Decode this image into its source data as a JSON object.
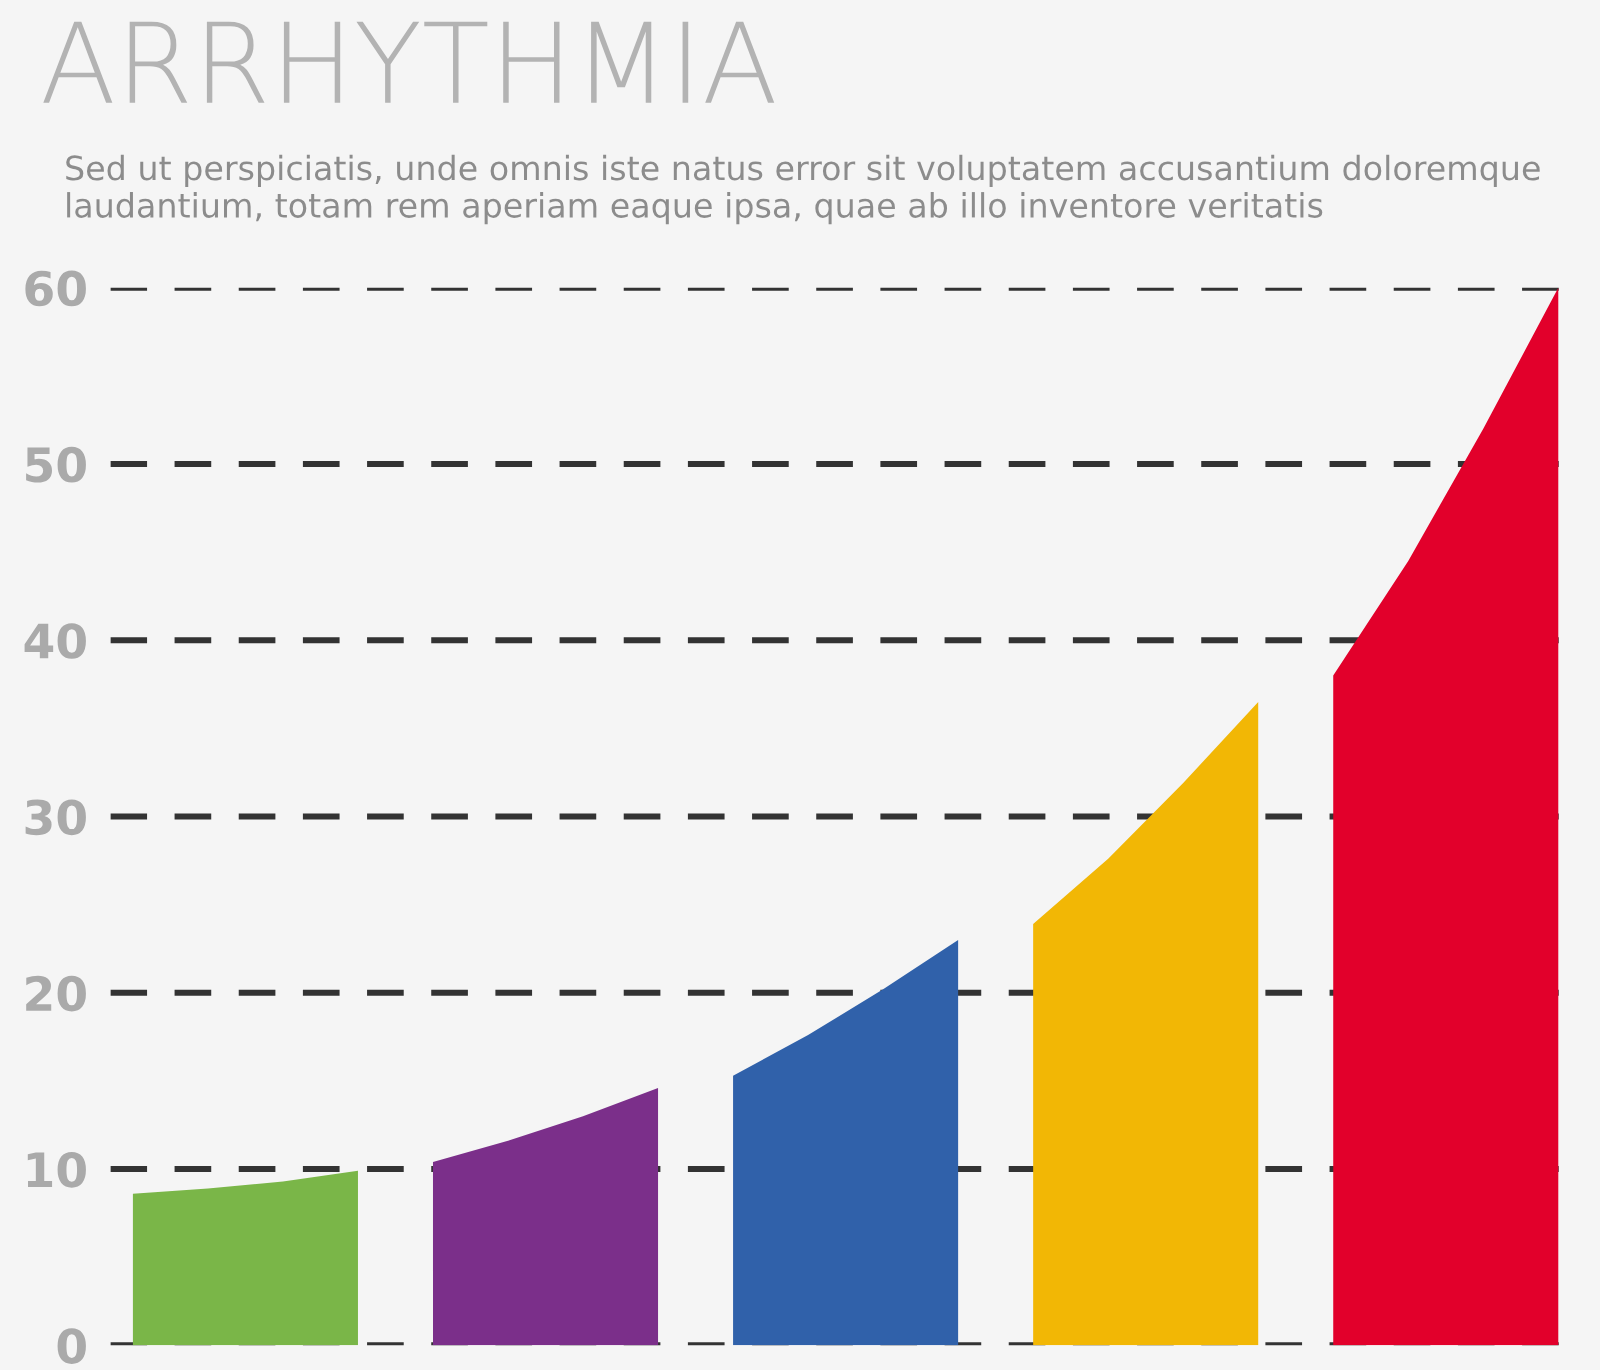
{
  "chart_data": {
    "type": "area",
    "title": "ARRHYTHMIA",
    "subtitle": "Sed ut perspiciatis, unde omnis iste natus error sit voluptatem accusantium doloremque laudantium, totam rem aperiam eaque ipsa, quae ab illo inventore veritatis",
    "categories": [
      null,
      null,
      null,
      null,
      null,
      null,
      null,
      null,
      null,
      null,
      null,
      null,
      null,
      null,
      null,
      null,
      null,
      null,
      null,
      null
    ],
    "series": [
      {
        "color": "#7ab648",
        "values": [
          8.6,
          8.9,
          9.3,
          9.9,
          null,
          null,
          null,
          null,
          null,
          null,
          null,
          null,
          null,
          null,
          null,
          null,
          null,
          null,
          null,
          null
        ]
      },
      {
        "color": "#7b2f8a",
        "values": [
          null,
          null,
          null,
          null,
          10.4,
          11.6,
          13.0,
          14.6,
          null,
          null,
          null,
          null,
          null,
          null,
          null,
          null,
          null,
          null,
          null,
          null
        ]
      },
      {
        "color": "#3061aa",
        "values": [
          null,
          null,
          null,
          null,
          null,
          null,
          null,
          null,
          15.3,
          17.6,
          20.2,
          23.0,
          null,
          null,
          null,
          null,
          null,
          null,
          null,
          null
        ]
      },
      {
        "color": "#f2b705",
        "values": [
          null,
          null,
          null,
          null,
          null,
          null,
          null,
          null,
          null,
          null,
          null,
          null,
          23.9,
          27.6,
          31.9,
          36.5,
          null,
          null,
          null,
          null
        ]
      },
      {
        "color": "#e2002b",
        "values": [
          null,
          null,
          null,
          null,
          null,
          null,
          null,
          null,
          null,
          null,
          null,
          null,
          null,
          null,
          null,
          null,
          38.0,
          44.5,
          52.0,
          60.0
        ]
      }
    ],
    "ylim": [
      0,
      60
    ],
    "yticks": [
      0,
      10,
      20,
      30,
      40,
      50,
      60
    ],
    "grid": "y",
    "tick_labels": "y",
    "legend": false
  }
}
